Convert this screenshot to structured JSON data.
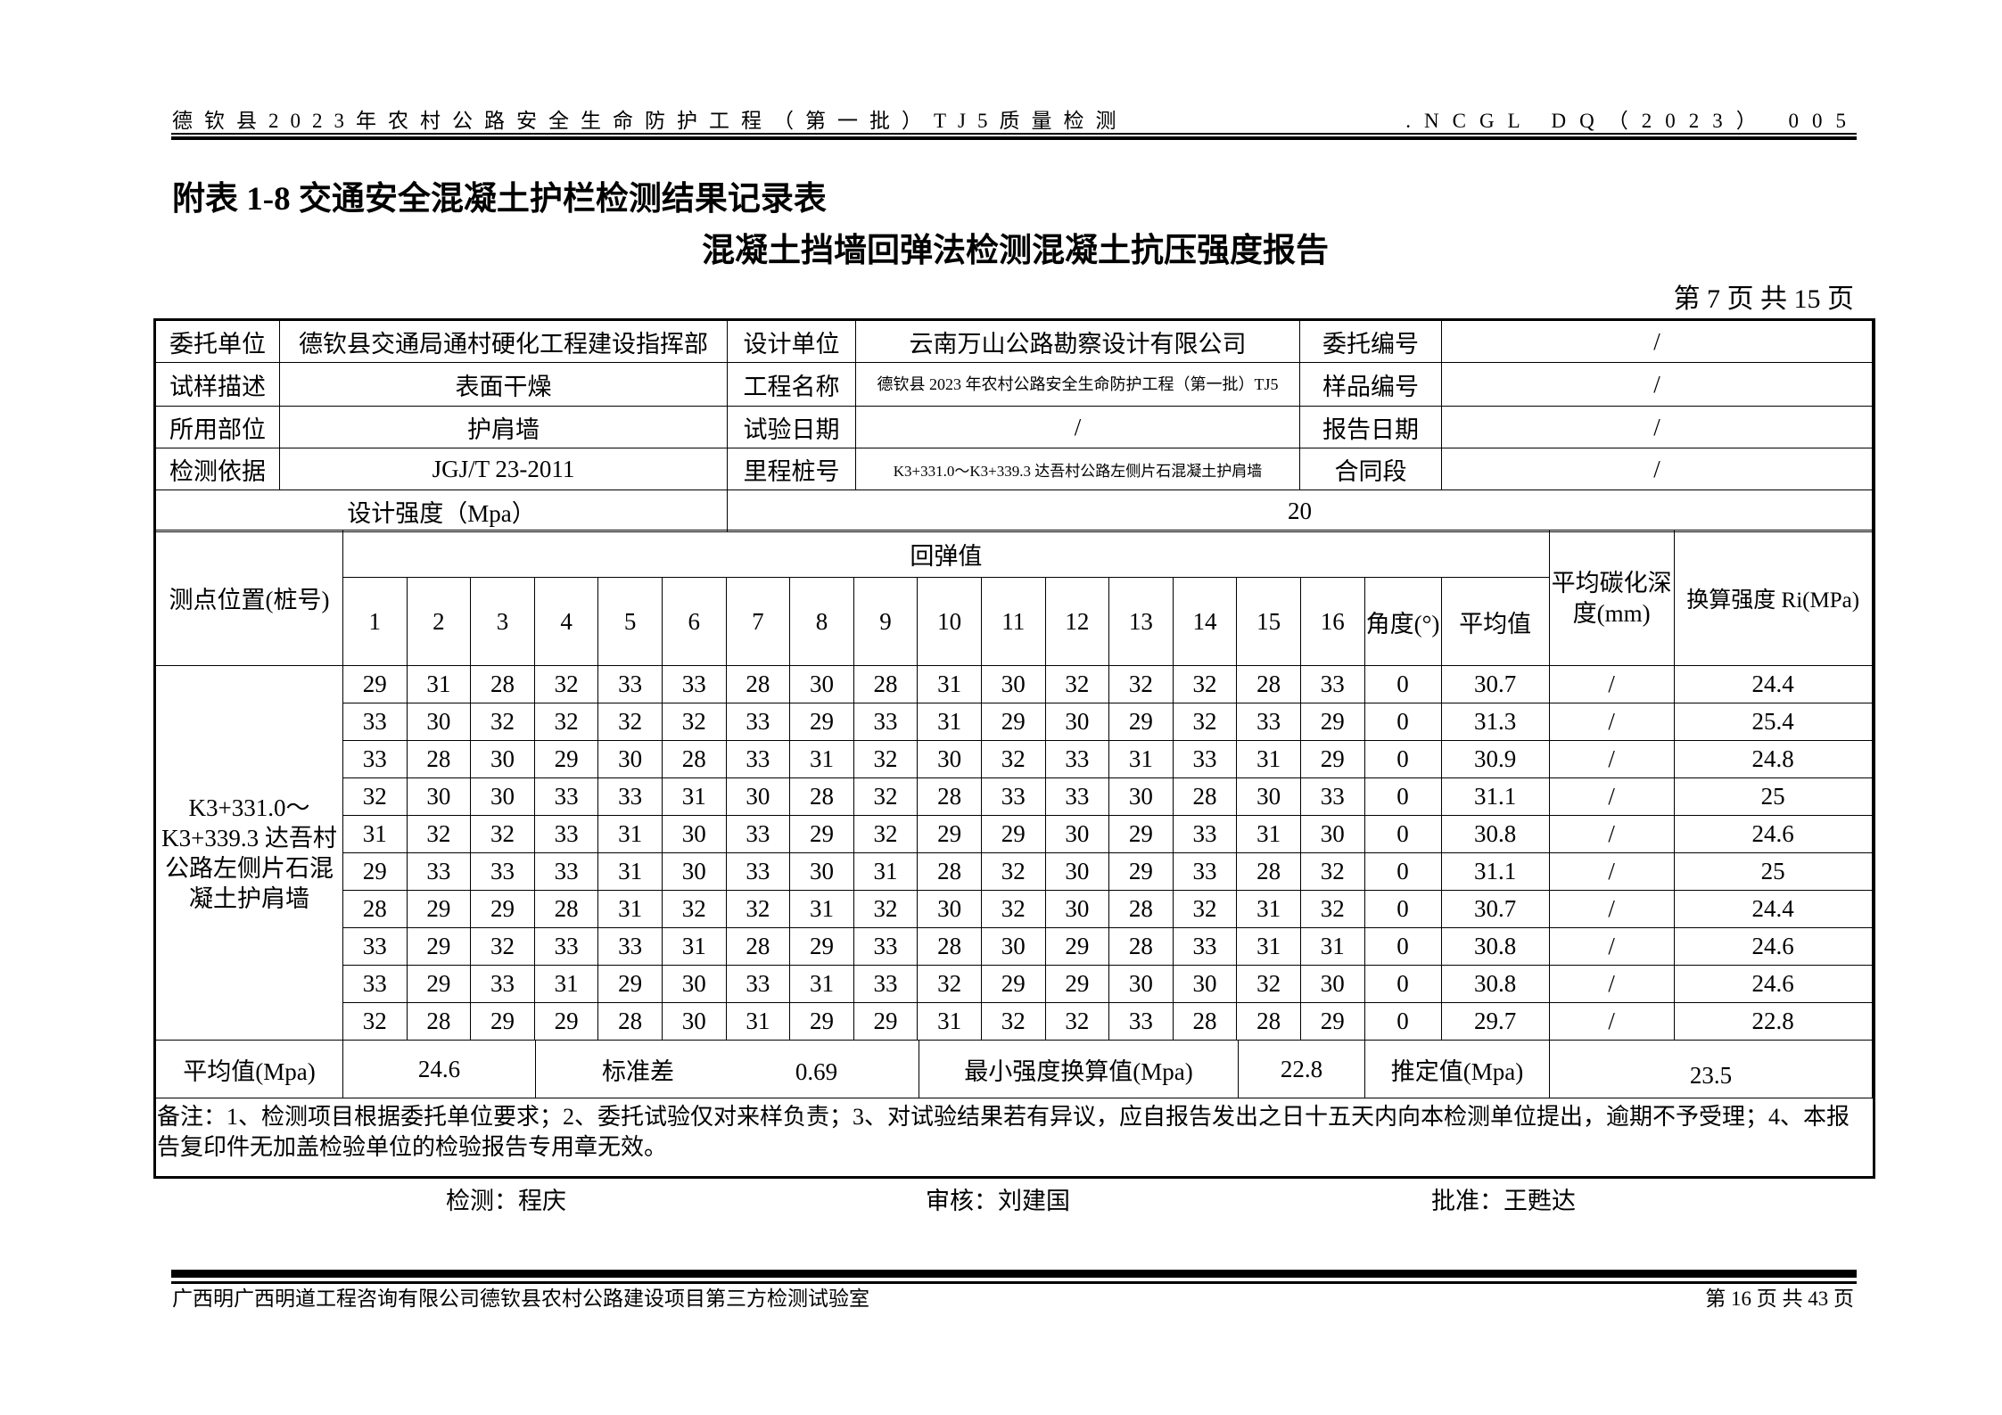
{
  "header": {
    "left": "德钦县2023年农村公路安全生命防护工程（第一批）TJ5质量检测",
    "right": ".NCGL DQ（2023） 005"
  },
  "title": "附表 1-8 交通安全混凝土护栏检测结果记录表",
  "subtitle": "混凝土挡墙回弹法检测混凝土抗压强度报告",
  "page_indicator": "第 7 页  共 15 页",
  "info": {
    "client_label": "委托单位",
    "client": "德钦县交通局通村硬化工程建设指挥部",
    "design_unit_label": "设计单位",
    "design_unit": "云南万山公路勘察设计有限公司",
    "commission_no_label": "委托编号",
    "commission_no": "/",
    "sample_desc_label": "试样描述",
    "sample_desc": "表面干燥",
    "project_label": "工程名称",
    "project": "德钦县 2023 年农村公路安全生命防护工程（第一批）TJ5",
    "sample_no_label": "样品编号",
    "sample_no": "/",
    "part_label": "所用部位",
    "part": "护肩墙",
    "test_date_label": "试验日期",
    "test_date": "/",
    "report_date_label": "报告日期",
    "report_date": "/",
    "basis_label": "检测依据",
    "basis": "JGJ/T 23-2011",
    "mileage_label": "里程桩号",
    "mileage": "K3+331.0～K3+339.3 达吾村公路左侧片石混凝土护肩墙",
    "contract_label": "合同段",
    "contract": "/",
    "design_strength_label": "设计强度（Mpa）",
    "design_strength": "20"
  },
  "table": {
    "location_header": "测点位置(桩号)",
    "rebound_header": "回弹值",
    "columns": [
      "1",
      "2",
      "3",
      "4",
      "5",
      "6",
      "7",
      "8",
      "9",
      "10",
      "11",
      "12",
      "13",
      "14",
      "15",
      "16"
    ],
    "angle_header": "角度(°)",
    "avg_header": "平均值",
    "carbon_header": "平均碳化深度(mm)",
    "strength_header": "换算强度 Ri(MPa)",
    "location": "K3+331.0～K3+339.3 达吾村公路左侧片石混凝土护肩墙",
    "rows": [
      {
        "v": [
          "29",
          "31",
          "28",
          "32",
          "33",
          "33",
          "28",
          "30",
          "28",
          "31",
          "30",
          "32",
          "32",
          "32",
          "28",
          "33"
        ],
        "angle": "0",
        "avg": "30.7",
        "carbon": "/",
        "strength": "24.4"
      },
      {
        "v": [
          "33",
          "30",
          "32",
          "32",
          "32",
          "32",
          "33",
          "29",
          "33",
          "31",
          "29",
          "30",
          "29",
          "32",
          "33",
          "29"
        ],
        "angle": "0",
        "avg": "31.3",
        "carbon": "/",
        "strength": "25.4"
      },
      {
        "v": [
          "33",
          "28",
          "30",
          "29",
          "30",
          "28",
          "33",
          "31",
          "32",
          "30",
          "32",
          "33",
          "31",
          "33",
          "31",
          "29"
        ],
        "angle": "0",
        "avg": "30.9",
        "carbon": "/",
        "strength": "24.8"
      },
      {
        "v": [
          "32",
          "30",
          "30",
          "33",
          "33",
          "31",
          "30",
          "28",
          "32",
          "28",
          "33",
          "33",
          "30",
          "28",
          "30",
          "33"
        ],
        "angle": "0",
        "avg": "31.1",
        "carbon": "/",
        "strength": "25"
      },
      {
        "v": [
          "31",
          "32",
          "32",
          "33",
          "31",
          "30",
          "33",
          "29",
          "32",
          "29",
          "29",
          "30",
          "29",
          "33",
          "31",
          "30"
        ],
        "angle": "0",
        "avg": "30.8",
        "carbon": "/",
        "strength": "24.6"
      },
      {
        "v": [
          "29",
          "33",
          "33",
          "33",
          "31",
          "30",
          "33",
          "30",
          "31",
          "28",
          "32",
          "30",
          "29",
          "33",
          "28",
          "32"
        ],
        "angle": "0",
        "avg": "31.1",
        "carbon": "/",
        "strength": "25"
      },
      {
        "v": [
          "28",
          "29",
          "29",
          "28",
          "31",
          "32",
          "32",
          "31",
          "32",
          "30",
          "32",
          "30",
          "28",
          "32",
          "31",
          "32"
        ],
        "angle": "0",
        "avg": "30.7",
        "carbon": "/",
        "strength": "24.4"
      },
      {
        "v": [
          "33",
          "29",
          "32",
          "33",
          "33",
          "31",
          "28",
          "29",
          "33",
          "28",
          "30",
          "29",
          "28",
          "33",
          "31",
          "31"
        ],
        "angle": "0",
        "avg": "30.8",
        "carbon": "/",
        "strength": "24.6"
      },
      {
        "v": [
          "33",
          "29",
          "33",
          "31",
          "29",
          "30",
          "33",
          "31",
          "33",
          "32",
          "29",
          "29",
          "30",
          "30",
          "32",
          "30"
        ],
        "angle": "0",
        "avg": "30.8",
        "carbon": "/",
        "strength": "24.6"
      },
      {
        "v": [
          "32",
          "28",
          "29",
          "29",
          "28",
          "30",
          "31",
          "29",
          "29",
          "31",
          "32",
          "32",
          "33",
          "28",
          "28",
          "29"
        ],
        "angle": "0",
        "avg": "29.7",
        "carbon": "/",
        "strength": "22.8"
      }
    ]
  },
  "summary": {
    "mean_label": "平均值(Mpa)",
    "mean": "24.6",
    "std_label": "标准差",
    "std": "0.69",
    "min_label": "最小强度换算值(Mpa)",
    "min": "22.8",
    "estimate_label": "推定值(Mpa)",
    "estimate": "23.5"
  },
  "notes": "备注：1、检测项目根据委托单位要求；2、委托试验仅对来样负责；3、对试验结果若有异议，应自报告发出之日十五天内向本检测单位提出，逾期不予受理；4、本报告复印件无加盖检验单位的检验报告专用章无效。",
  "signatures": {
    "tester": "检测：程庆",
    "reviewer": "审核：刘建国",
    "approver": "批准：王甦达"
  },
  "footer": {
    "left": "广西明广西明道工程咨询有限公司德钦县农村公路建设项目第三方检测试验室",
    "right": "第 16 页 共 43 页"
  }
}
